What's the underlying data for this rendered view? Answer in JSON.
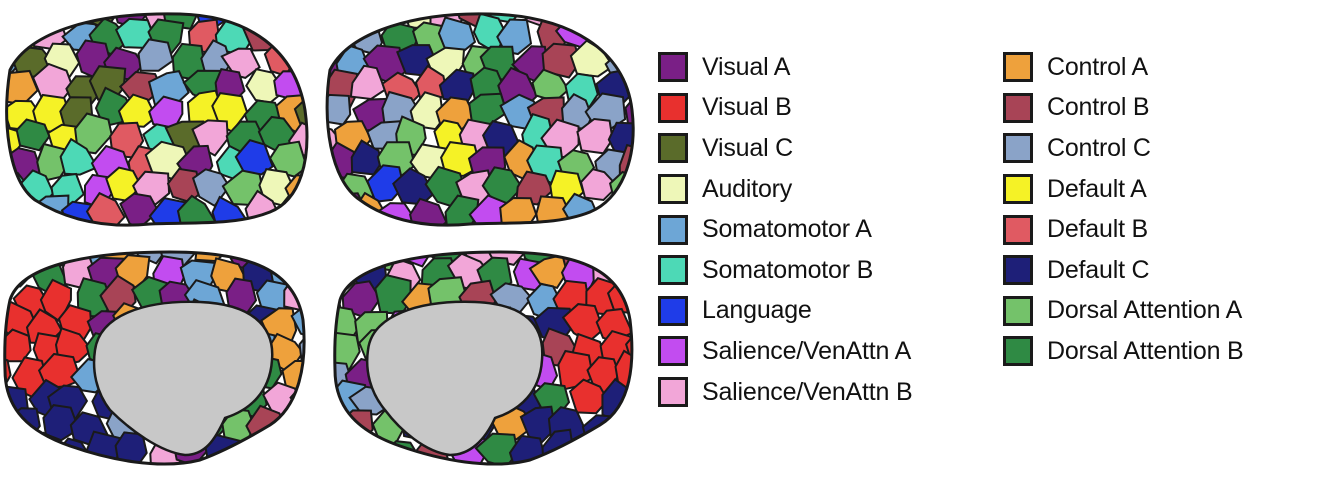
{
  "legend": {
    "left": [
      {
        "label": "Visual A",
        "color": "#7a1f86"
      },
      {
        "label": "Visual B",
        "color": "#e8302e"
      },
      {
        "label": "Visual C",
        "color": "#5a6b2a"
      },
      {
        "label": "Auditory",
        "color": "#eef7b8"
      },
      {
        "label": "Somatomotor A",
        "color": "#6da6d6"
      },
      {
        "label": "Somatomotor B",
        "color": "#4dd9b6"
      },
      {
        "label": "Language",
        "color": "#1f3ce8"
      },
      {
        "label": "Salience/VenAttn A",
        "color": "#c24cf0"
      },
      {
        "label": "Salience/VenAttn B",
        "color": "#f2a6d8"
      }
    ],
    "right": [
      {
        "label": "Control A",
        "color": "#eea13c"
      },
      {
        "label": "Control B",
        "color": "#a84456"
      },
      {
        "label": "Control C",
        "color": "#8aa3c8"
      },
      {
        "label": "Default A",
        "color": "#f5f226"
      },
      {
        "label": "Default B",
        "color": "#e05a62"
      },
      {
        "label": "Default C",
        "color": "#1e1f78"
      },
      {
        "label": "Dorsal Attention A",
        "color": "#74c26a"
      },
      {
        "label": "Dorsal Attention B",
        "color": "#2f8a44"
      }
    ]
  },
  "brain_views": [
    {
      "view": "left-lateral",
      "colors": [
        "#4dd9b6",
        "#7a1f86",
        "#eea13c",
        "#c24cf0",
        "#f2a6d8",
        "#a84456",
        "#2f8a44",
        "#6da6d6",
        "#f5f226",
        "#1f3ce8",
        "#eef7b8",
        "#e05a62",
        "#5a6b2a",
        "#8aa3c8",
        "#74c26a"
      ]
    },
    {
      "view": "right-lateral",
      "colors": [
        "#a84456",
        "#7a1f86",
        "#c24cf0",
        "#6da6d6",
        "#eef7b8",
        "#f5f226",
        "#2f8a44",
        "#eea13c",
        "#1f3ce8",
        "#f2a6d8",
        "#4dd9b6",
        "#1e1f78",
        "#74c26a",
        "#8aa3c8",
        "#e05a62"
      ]
    },
    {
      "view": "left-medial",
      "colors": [
        "#c24cf0",
        "#f2a6d8",
        "#8aa3c8",
        "#1e1f78",
        "#a84456",
        "#2f8a44",
        "#6da6d6",
        "#eea13c",
        "#7a1f86",
        "#74c26a"
      ]
    },
    {
      "view": "right-medial",
      "colors": [
        "#c24cf0",
        "#eea13c",
        "#8aa3c8",
        "#a84456",
        "#7a1f86",
        "#1e1f78",
        "#2f8a44",
        "#6da6d6",
        "#f2a6d8",
        "#74c26a"
      ]
    }
  ],
  "brain_colors": {
    "occipital_red": "#e8302e",
    "medial_wall": "#c8c8c8",
    "default_a": "#f5f226",
    "default_c": "#1e1f78",
    "outline": "#1a1a1a"
  }
}
